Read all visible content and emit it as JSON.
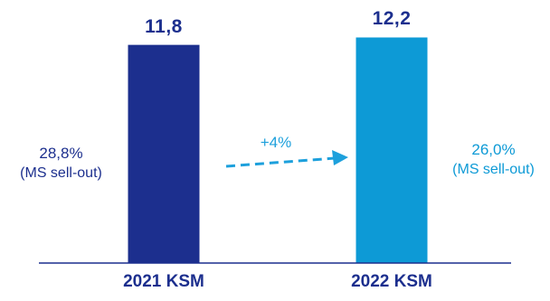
{
  "chart_data": {
    "type": "bar",
    "categories": [
      "2021 KSM",
      "2022 KSM"
    ],
    "values": [
      11.8,
      12.2
    ],
    "value_labels": [
      "11,8",
      "12,2"
    ],
    "bar_colors": [
      "#1c2f8e",
      "#0d9ad6"
    ],
    "ylim": [
      0,
      13.2
    ],
    "title": "",
    "xlabel": "",
    "ylabel": "",
    "annotations": {
      "growth": "+4%",
      "market_share": [
        {
          "pct": "28,8%",
          "note": "(MS sell-out)",
          "color": "#1c2f8e"
        },
        {
          "pct": "26,0%",
          "note": "(MS sell-out)",
          "color": "#0d9ad6"
        }
      ]
    }
  },
  "colors": {
    "dark_blue": "#1c2f8e",
    "light_blue": "#0d9ad6",
    "arrow": "#1da0dc",
    "axis": "#1c2f8e"
  }
}
